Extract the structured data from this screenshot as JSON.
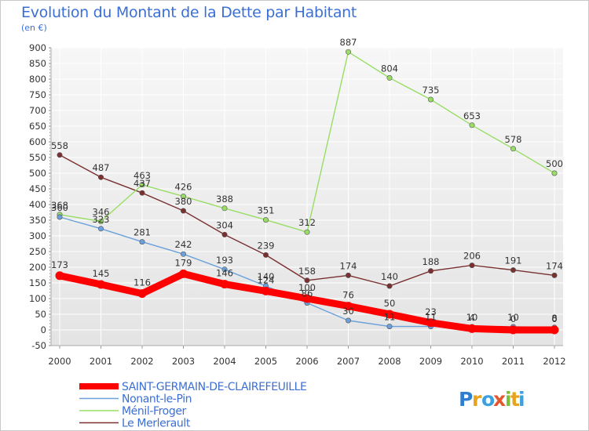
{
  "chart_data": {
    "type": "line",
    "title": "Evolution du Montant de la Dette par Habitant",
    "subtitle": "(en €)",
    "xlabel": "",
    "ylabel": "",
    "x": [
      "2000",
      "2001",
      "2002",
      "2003",
      "2004",
      "2005",
      "2006",
      "2007",
      "2008",
      "2009",
      "2010",
      "2011",
      "2012"
    ],
    "ylim": [
      -50,
      900
    ],
    "yticks": [
      -50,
      0,
      50,
      100,
      150,
      200,
      250,
      300,
      350,
      400,
      450,
      500,
      550,
      600,
      650,
      700,
      750,
      800,
      850,
      900
    ],
    "grid": true,
    "legend_position": "bottom-left",
    "series": [
      {
        "name": "SAINT-GERMAIN-DE-CLAIREFEUILLE",
        "color": "#ff0000",
        "values": [
          173,
          145,
          116,
          179,
          146,
          124,
          100,
          76,
          50,
          23,
          4,
          0,
          0
        ],
        "labels": [
          "173",
          "145",
          "116",
          "179",
          "146",
          "124",
          "100",
          "76",
          "50",
          "23",
          "4",
          "0",
          "0"
        ]
      },
      {
        "name": "Nonant-le-Pin",
        "color": "#6aa0dc",
        "values": [
          360,
          323,
          281,
          242,
          193,
          140,
          86,
          30,
          11,
          11,
          10,
          10,
          8
        ],
        "labels": [
          "360",
          "323",
          "281",
          "242",
          "193",
          "140",
          "86",
          "30",
          "11",
          "11",
          "10",
          "10",
          "8"
        ]
      },
      {
        "name": "Ménil-Froger",
        "color": "#99dd66",
        "values": [
          368,
          346,
          463,
          426,
          388,
          351,
          312,
          887,
          804,
          735,
          653,
          578,
          500
        ],
        "labels": [
          "368",
          "346",
          "463",
          "426",
          "388",
          "351",
          "312",
          "887",
          "804",
          "735",
          "653",
          "578",
          "500"
        ]
      },
      {
        "name": "Le Merlerault",
        "color": "#7a3030",
        "values": [
          558,
          487,
          437,
          380,
          304,
          239,
          158,
          174,
          140,
          188,
          206,
          191,
          174
        ],
        "labels": [
          "558",
          "487",
          "437",
          "380",
          "304",
          "239",
          "158",
          "174",
          "140",
          "188",
          "206",
          "191",
          "174"
        ]
      }
    ]
  },
  "watermark": {
    "text": "Proxiti"
  }
}
